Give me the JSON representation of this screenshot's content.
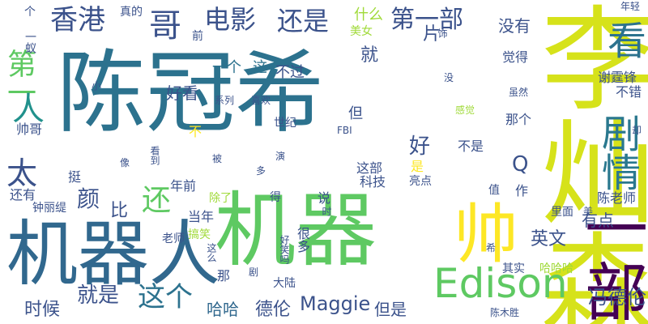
{
  "cloud": {
    "background": "#ffffff",
    "palette": [
      "#440154",
      "#3b528b",
      "#21918c",
      "#5ec962",
      "#fde725",
      "#2c728e",
      "#a0da39",
      "#31688e"
    ],
    "words": [
      {
        "text": "陈冠希",
        "color": "#2c728e"
      },
      {
        "text": "机器人",
        "color": "#31688e"
      },
      {
        "text": "机器",
        "color": "#5ec962"
      },
      {
        "text": "李灿森",
        "color": "#d6e21a"
      },
      {
        "text": "一部",
        "color": "#440154"
      },
      {
        "text": "帅",
        "color": "#fde725"
      },
      {
        "text": "Edison",
        "color": "#5ec962"
      },
      {
        "text": "看",
        "color": "#2c728e"
      },
      {
        "text": "剧情",
        "color": "#2a788e"
      },
      {
        "text": "香港",
        "color": "#3b528b"
      },
      {
        "text": "电影",
        "color": "#3b528b"
      },
      {
        "text": "还是",
        "color": "#3b528b"
      },
      {
        "text": "第一部",
        "color": "#3b528b"
      },
      {
        "text": "哥",
        "color": "#3b528b"
      },
      {
        "text": "第一",
        "color": "#5ec962"
      },
      {
        "text": "人",
        "color": "#21918c"
      },
      {
        "text": "太",
        "color": "#3b528b"
      },
      {
        "text": "颜",
        "color": "#3b528b"
      },
      {
        "text": "比",
        "color": "#3b528b"
      },
      {
        "text": "还",
        "color": "#5ec962"
      },
      {
        "text": "这个",
        "color": "#2c728e"
      },
      {
        "text": "就是",
        "color": "#3b528b"
      },
      {
        "text": "时候",
        "color": "#3b528b"
      },
      {
        "text": "哈哈",
        "color": "#31688e"
      },
      {
        "text": "德伦",
        "color": "#3b528b"
      },
      {
        "text": "Maggie",
        "color": "#3b528b"
      },
      {
        "text": "但是",
        "color": "#3b528b"
      },
      {
        "text": "冯德伦",
        "color": "#3b528b"
      },
      {
        "text": "英文",
        "color": "#3b528b"
      },
      {
        "text": "有点",
        "color": "#3b528b"
      },
      {
        "text": "陈老师",
        "color": "#3b528b"
      },
      {
        "text": "好看",
        "color": "#3b528b"
      },
      {
        "text": "一个",
        "color": "#2c728e"
      },
      {
        "text": "这",
        "color": "#2c728e"
      },
      {
        "text": "不过",
        "color": "#3b528b"
      },
      {
        "text": "就",
        "color": "#3b528b"
      },
      {
        "text": "什么",
        "color": "#a0da39"
      },
      {
        "text": "片",
        "color": "#3b528b"
      },
      {
        "text": "没有",
        "color": "#3b528b"
      },
      {
        "text": "觉得",
        "color": "#3b528b"
      },
      {
        "text": "美女",
        "color": "#a0da39"
      },
      {
        "text": "谢霆锋",
        "color": "#3b528b"
      },
      {
        "text": "不错",
        "color": "#3b528b"
      },
      {
        "text": "年轻",
        "color": "#3b528b"
      },
      {
        "text": "真的",
        "color": "#3b528b"
      },
      {
        "text": "个",
        "color": "#3b528b"
      },
      {
        "text": "一蚁",
        "color": "#3b528b"
      },
      {
        "text": "前",
        "color": "#3b528b"
      },
      {
        "text": "系列",
        "color": "#3b528b"
      },
      {
        "text": "喜欢",
        "color": "#3b528b"
      },
      {
        "text": "但",
        "color": "#3b528b"
      },
      {
        "text": "不",
        "color": "#fde725"
      },
      {
        "text": "世纪",
        "color": "#3b528b"
      },
      {
        "text": "帅哥",
        "color": "#3b528b"
      },
      {
        "text": "FBI",
        "color": "#3b528b"
      },
      {
        "text": "好",
        "color": "#3b528b"
      },
      {
        "text": "那个",
        "color": "#3b528b"
      },
      {
        "text": "不是",
        "color": "#3b528b"
      },
      {
        "text": "这部",
        "color": "#3b528b"
      },
      {
        "text": "科技",
        "color": "#3b528b"
      },
      {
        "text": "是",
        "color": "#fde725"
      },
      {
        "text": "亮点",
        "color": "#3b528b"
      },
      {
        "text": "Q",
        "color": "#3b528b"
      },
      {
        "text": "感觉",
        "color": "#a0da39"
      },
      {
        "text": "虽然",
        "color": "#3b528b"
      },
      {
        "text": "挺",
        "color": "#3b528b"
      },
      {
        "text": "还有",
        "color": "#3b528b"
      },
      {
        "text": "钟丽缇",
        "color": "#3b528b"
      },
      {
        "text": "年前",
        "color": "#3b528b"
      },
      {
        "text": "除了",
        "color": "#a0da39"
      },
      {
        "text": "得",
        "color": "#3b528b"
      },
      {
        "text": "说",
        "color": "#3b528b"
      },
      {
        "text": "时",
        "color": "#3b528b"
      },
      {
        "text": "值",
        "color": "#3b528b"
      },
      {
        "text": "作",
        "color": "#3b528b"
      },
      {
        "text": "当年",
        "color": "#3b528b"
      },
      {
        "text": "老师",
        "color": "#3b528b"
      },
      {
        "text": "搞笑",
        "color": "#a0da39"
      },
      {
        "text": "很多",
        "color": "#3b528b"
      },
      {
        "text": "那",
        "color": "#3b528b"
      },
      {
        "text": "大陆",
        "color": "#3b528b"
      },
      {
        "text": "其实",
        "color": "#3b528b"
      },
      {
        "text": "哈哈哈",
        "color": "#a0da39"
      },
      {
        "text": "里面",
        "color": "#3b528b"
      },
      {
        "text": "美",
        "color": "#3b528b"
      },
      {
        "text": "陈木胜",
        "color": "#3b528b"
      },
      {
        "text": "饰",
        "color": "#3b528b"
      },
      {
        "text": "小",
        "color": "#3b528b"
      },
      {
        "text": "没",
        "color": "#3b528b"
      },
      {
        "text": "却",
        "color": "#3b528b"
      },
      {
        "text": "像",
        "color": "#3b528b"
      },
      {
        "text": "看到",
        "color": "#3b528b"
      },
      {
        "text": "被",
        "color": "#3b528b"
      },
      {
        "text": "多",
        "color": "#3b528b"
      },
      {
        "text": "演",
        "color": "#3b528b"
      },
      {
        "text": "这么",
        "color": "#3b528b"
      },
      {
        "text": "好笑吗",
        "color": "#3b528b"
      },
      {
        "text": "剧",
        "color": "#3b528b"
      },
      {
        "text": "希",
        "color": "#3b528b"
      }
    ]
  }
}
